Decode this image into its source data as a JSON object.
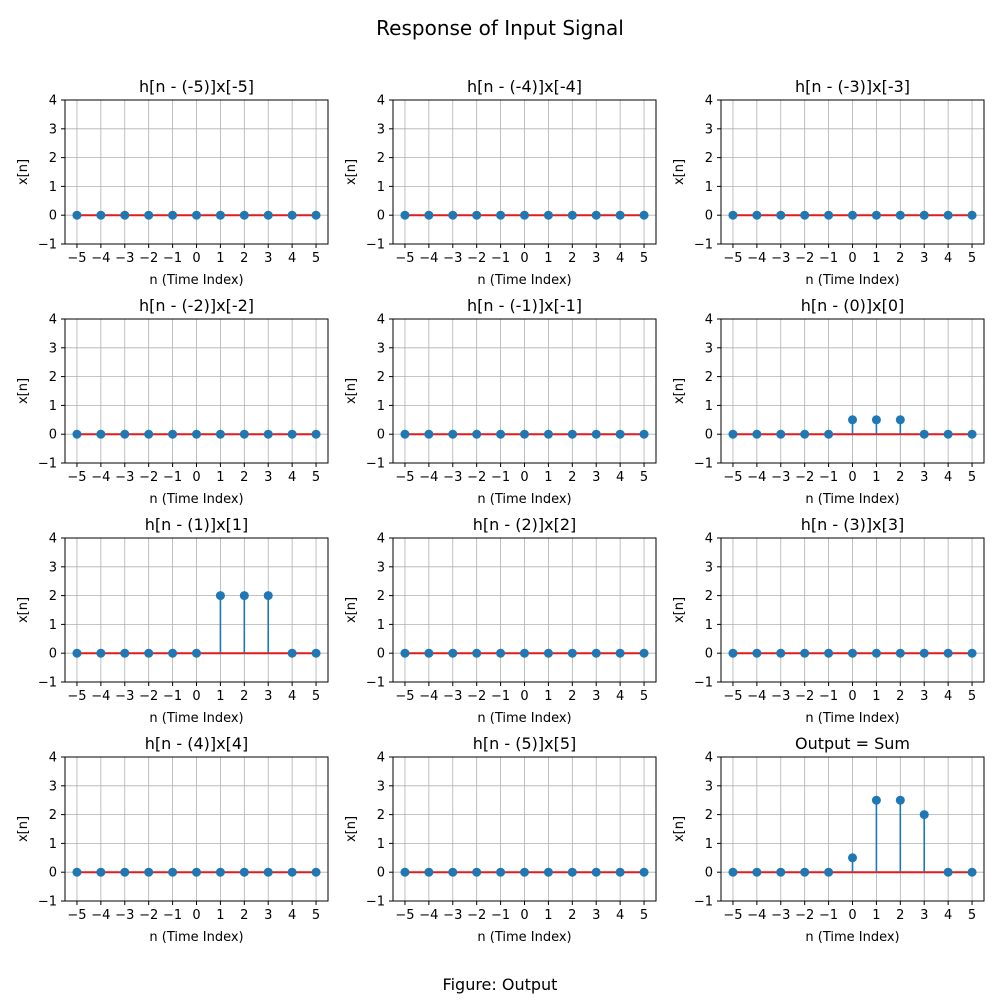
{
  "figure": {
    "title": "Response of Input Signal",
    "caption": "Figure: Output"
  },
  "colors": {
    "stem": "#1f77b4",
    "baseline": "#e41a1c",
    "grid": "#b0b0b0",
    "axes": "#000000"
  },
  "chart_data": [
    {
      "type": "stem",
      "title": "h[n - (-5)]x[-5]",
      "xlabel": "n (Time Index)",
      "ylabel": "x[n]",
      "x": [
        -5,
        -4,
        -3,
        -2,
        -1,
        0,
        1,
        2,
        3,
        4,
        5
      ],
      "y": [
        0,
        0,
        0,
        0,
        0,
        0,
        0,
        0,
        0,
        0,
        0
      ],
      "xlim": [
        -5.5,
        5.5
      ],
      "ylim": [
        -1,
        4
      ],
      "xticks": [
        "−5",
        "−4",
        "−3",
        "−2",
        "−1",
        "0",
        "1",
        "2",
        "3",
        "4",
        "5"
      ],
      "yticks": [
        "−1",
        "0",
        "1",
        "2",
        "3",
        "4"
      ],
      "grid": true
    },
    {
      "type": "stem",
      "title": "h[n - (-4)]x[-4]",
      "xlabel": "n (Time Index)",
      "ylabel": "x[n]",
      "x": [
        -5,
        -4,
        -3,
        -2,
        -1,
        0,
        1,
        2,
        3,
        4,
        5
      ],
      "y": [
        0,
        0,
        0,
        0,
        0,
        0,
        0,
        0,
        0,
        0,
        0
      ],
      "xlim": [
        -5.5,
        5.5
      ],
      "ylim": [
        -1,
        4
      ],
      "xticks": [
        "−5",
        "−4",
        "−3",
        "−2",
        "−1",
        "0",
        "1",
        "2",
        "3",
        "4",
        "5"
      ],
      "yticks": [
        "−1",
        "0",
        "1",
        "2",
        "3",
        "4"
      ],
      "grid": true
    },
    {
      "type": "stem",
      "title": "h[n - (-3)]x[-3]",
      "xlabel": "n (Time Index)",
      "ylabel": "x[n]",
      "x": [
        -5,
        -4,
        -3,
        -2,
        -1,
        0,
        1,
        2,
        3,
        4,
        5
      ],
      "y": [
        0,
        0,
        0,
        0,
        0,
        0,
        0,
        0,
        0,
        0,
        0
      ],
      "xlim": [
        -5.5,
        5.5
      ],
      "ylim": [
        -1,
        4
      ],
      "xticks": [
        "−5",
        "−4",
        "−3",
        "−2",
        "−1",
        "0",
        "1",
        "2",
        "3",
        "4",
        "5"
      ],
      "yticks": [
        "−1",
        "0",
        "1",
        "2",
        "3",
        "4"
      ],
      "grid": true
    },
    {
      "type": "stem",
      "title": "h[n - (-2)]x[-2]",
      "xlabel": "n (Time Index)",
      "ylabel": "x[n]",
      "x": [
        -5,
        -4,
        -3,
        -2,
        -1,
        0,
        1,
        2,
        3,
        4,
        5
      ],
      "y": [
        0,
        0,
        0,
        0,
        0,
        0,
        0,
        0,
        0,
        0,
        0
      ],
      "xlim": [
        -5.5,
        5.5
      ],
      "ylim": [
        -1,
        4
      ],
      "xticks": [
        "−5",
        "−4",
        "−3",
        "−2",
        "−1",
        "0",
        "1",
        "2",
        "3",
        "4",
        "5"
      ],
      "yticks": [
        "−1",
        "0",
        "1",
        "2",
        "3",
        "4"
      ],
      "grid": true
    },
    {
      "type": "stem",
      "title": "h[n - (-1)]x[-1]",
      "xlabel": "n (Time Index)",
      "ylabel": "x[n]",
      "x": [
        -5,
        -4,
        -3,
        -2,
        -1,
        0,
        1,
        2,
        3,
        4,
        5
      ],
      "y": [
        0,
        0,
        0,
        0,
        0,
        0,
        0,
        0,
        0,
        0,
        0
      ],
      "xlim": [
        -5.5,
        5.5
      ],
      "ylim": [
        -1,
        4
      ],
      "xticks": [
        "−5",
        "−4",
        "−3",
        "−2",
        "−1",
        "0",
        "1",
        "2",
        "3",
        "4",
        "5"
      ],
      "yticks": [
        "−1",
        "0",
        "1",
        "2",
        "3",
        "4"
      ],
      "grid": true
    },
    {
      "type": "stem",
      "title": "h[n - (0)]x[0]",
      "xlabel": "n (Time Index)",
      "ylabel": "x[n]",
      "x": [
        -5,
        -4,
        -3,
        -2,
        -1,
        0,
        1,
        2,
        3,
        4,
        5
      ],
      "y": [
        0,
        0,
        0,
        0,
        0,
        0.5,
        0.5,
        0.5,
        0,
        0,
        0
      ],
      "xlim": [
        -5.5,
        5.5
      ],
      "ylim": [
        -1,
        4
      ],
      "xticks": [
        "−5",
        "−4",
        "−3",
        "−2",
        "−1",
        "0",
        "1",
        "2",
        "3",
        "4",
        "5"
      ],
      "yticks": [
        "−1",
        "0",
        "1",
        "2",
        "3",
        "4"
      ],
      "grid": true
    },
    {
      "type": "stem",
      "title": "h[n - (1)]x[1]",
      "xlabel": "n (Time Index)",
      "ylabel": "x[n]",
      "x": [
        -5,
        -4,
        -3,
        -2,
        -1,
        0,
        1,
        2,
        3,
        4,
        5
      ],
      "y": [
        0,
        0,
        0,
        0,
        0,
        0,
        2,
        2,
        2,
        0,
        0
      ],
      "xlim": [
        -5.5,
        5.5
      ],
      "ylim": [
        -1,
        4
      ],
      "xticks": [
        "−5",
        "−4",
        "−3",
        "−2",
        "−1",
        "0",
        "1",
        "2",
        "3",
        "4",
        "5"
      ],
      "yticks": [
        "−1",
        "0",
        "1",
        "2",
        "3",
        "4"
      ],
      "grid": true
    },
    {
      "type": "stem",
      "title": "h[n - (2)]x[2]",
      "xlabel": "n (Time Index)",
      "ylabel": "x[n]",
      "x": [
        -5,
        -4,
        -3,
        -2,
        -1,
        0,
        1,
        2,
        3,
        4,
        5
      ],
      "y": [
        0,
        0,
        0,
        0,
        0,
        0,
        0,
        0,
        0,
        0,
        0
      ],
      "xlim": [
        -5.5,
        5.5
      ],
      "ylim": [
        -1,
        4
      ],
      "xticks": [
        "−5",
        "−4",
        "−3",
        "−2",
        "−1",
        "0",
        "1",
        "2",
        "3",
        "4",
        "5"
      ],
      "yticks": [
        "−1",
        "0",
        "1",
        "2",
        "3",
        "4"
      ],
      "grid": true
    },
    {
      "type": "stem",
      "title": "h[n - (3)]x[3]",
      "xlabel": "n (Time Index)",
      "ylabel": "x[n]",
      "x": [
        -5,
        -4,
        -3,
        -2,
        -1,
        0,
        1,
        2,
        3,
        4,
        5
      ],
      "y": [
        0,
        0,
        0,
        0,
        0,
        0,
        0,
        0,
        0,
        0,
        0
      ],
      "xlim": [
        -5.5,
        5.5
      ],
      "ylim": [
        -1,
        4
      ],
      "xticks": [
        "−5",
        "−4",
        "−3",
        "−2",
        "−1",
        "0",
        "1",
        "2",
        "3",
        "4",
        "5"
      ],
      "yticks": [
        "−1",
        "0",
        "1",
        "2",
        "3",
        "4"
      ],
      "grid": true
    },
    {
      "type": "stem",
      "title": "h[n - (4)]x[4]",
      "xlabel": "n (Time Index)",
      "ylabel": "x[n]",
      "x": [
        -5,
        -4,
        -3,
        -2,
        -1,
        0,
        1,
        2,
        3,
        4,
        5
      ],
      "y": [
        0,
        0,
        0,
        0,
        0,
        0,
        0,
        0,
        0,
        0,
        0
      ],
      "xlim": [
        -5.5,
        5.5
      ],
      "ylim": [
        -1,
        4
      ],
      "xticks": [
        "−5",
        "−4",
        "−3",
        "−2",
        "−1",
        "0",
        "1",
        "2",
        "3",
        "4",
        "5"
      ],
      "yticks": [
        "−1",
        "0",
        "1",
        "2",
        "3",
        "4"
      ],
      "grid": true
    },
    {
      "type": "stem",
      "title": "h[n - (5)]x[5]",
      "xlabel": "n (Time Index)",
      "ylabel": "x[n]",
      "x": [
        -5,
        -4,
        -3,
        -2,
        -1,
        0,
        1,
        2,
        3,
        4,
        5
      ],
      "y": [
        0,
        0,
        0,
        0,
        0,
        0,
        0,
        0,
        0,
        0,
        0
      ],
      "xlim": [
        -5.5,
        5.5
      ],
      "ylim": [
        -1,
        4
      ],
      "xticks": [
        "−5",
        "−4",
        "−3",
        "−2",
        "−1",
        "0",
        "1",
        "2",
        "3",
        "4",
        "5"
      ],
      "yticks": [
        "−1",
        "0",
        "1",
        "2",
        "3",
        "4"
      ],
      "grid": true
    },
    {
      "type": "stem",
      "title": "Output = Sum",
      "xlabel": "n (Time Index)",
      "ylabel": "x[n]",
      "x": [
        -5,
        -4,
        -3,
        -2,
        -1,
        0,
        1,
        2,
        3,
        4,
        5
      ],
      "y": [
        0,
        0,
        0,
        0,
        0,
        0.5,
        2.5,
        2.5,
        2,
        0,
        0
      ],
      "xlim": [
        -5.5,
        5.5
      ],
      "ylim": [
        -1,
        4
      ],
      "xticks": [
        "−5",
        "−4",
        "−3",
        "−2",
        "−1",
        "0",
        "1",
        "2",
        "3",
        "4",
        "5"
      ],
      "yticks": [
        "−1",
        "0",
        "1",
        "2",
        "3",
        "4"
      ],
      "grid": true
    }
  ]
}
